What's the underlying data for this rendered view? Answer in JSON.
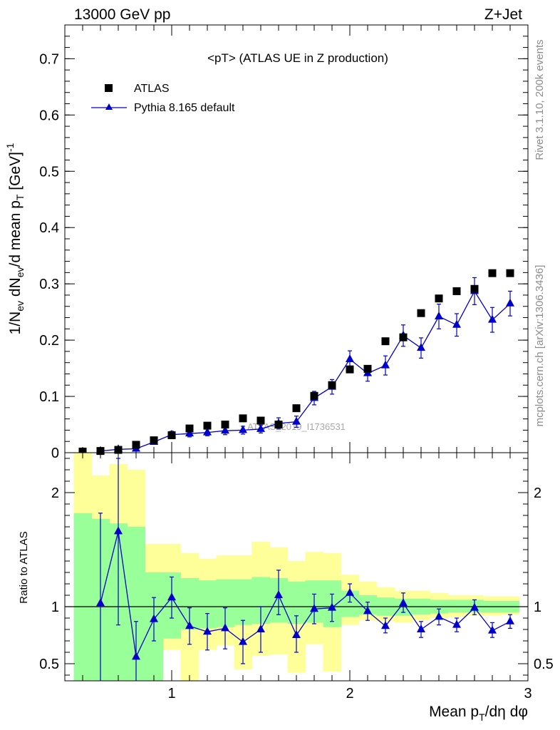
{
  "header": {
    "left": "13000 GeV pp",
    "right": "Z+Jet"
  },
  "side_labels": {
    "rivet": "Rivet 3.1.10,  200k events",
    "mcplots": "mcplots.cern.ch [arXiv:1306.3436]"
  },
  "chart_data": [
    {
      "type": "scatter",
      "title": "<pT> (ATLAS UE in Z production)",
      "watermark": "ATLAS_2019_I1736531",
      "ylabel": "1/N_ev dN_ev/d mean p_T [GeV]^-1",
      "xlim": [
        0.4,
        3.0
      ],
      "ylim": [
        0,
        0.76
      ],
      "yticks": [
        "0",
        "0.1",
        "0.2",
        "0.3",
        "0.4",
        "0.5",
        "0.6",
        "0.7"
      ],
      "legend_position": "top-left",
      "colors": {
        "data": "#000000",
        "mc": "#0000cc"
      },
      "series": [
        {
          "name": "ATLAS",
          "marker": "square",
          "x": [
            0.5,
            0.6,
            0.7,
            0.8,
            0.9,
            1.0,
            1.1,
            1.2,
            1.3,
            1.4,
            1.5,
            1.6,
            1.7,
            1.8,
            1.9,
            2.0,
            2.1,
            2.2,
            2.3,
            2.4,
            2.5,
            2.6,
            2.7,
            2.8,
            2.9
          ],
          "y": [
            0.002,
            0.003,
            0.005,
            0.014,
            0.022,
            0.031,
            0.043,
            0.048,
            0.05,
            0.061,
            0.057,
            0.05,
            0.079,
            0.101,
            0.12,
            0.148,
            0.149,
            0.198,
            0.205,
            0.248,
            0.274,
            0.287,
            0.291,
            0.319,
            0.319
          ]
        },
        {
          "name": "Pythia 8.165 default",
          "marker": "triangle",
          "x": [
            0.6,
            0.7,
            0.8,
            0.9,
            1.0,
            1.1,
            1.2,
            1.3,
            1.4,
            1.5,
            1.6,
            1.7,
            1.8,
            1.9,
            2.0,
            2.1,
            2.2,
            2.3,
            2.4,
            2.5,
            2.6,
            2.7,
            2.8,
            2.9
          ],
          "y": [
            0.003,
            0.006,
            0.007,
            0.019,
            0.032,
            0.034,
            0.036,
            0.039,
            0.04,
            0.042,
            0.052,
            0.055,
            0.097,
            0.117,
            0.166,
            0.141,
            0.155,
            0.208,
            0.186,
            0.242,
            0.227,
            0.287,
            0.236,
            0.265
          ],
          "yerr": [
            0.002,
            0.003,
            0.004,
            0.004,
            0.006,
            0.006,
            0.006,
            0.007,
            0.007,
            0.007,
            0.01,
            0.01,
            0.012,
            0.013,
            0.015,
            0.014,
            0.017,
            0.019,
            0.018,
            0.022,
            0.02,
            0.024,
            0.022,
            0.022
          ]
        }
      ]
    },
    {
      "type": "line",
      "ylabel": "Ratio to ATLAS",
      "xlabel": "Mean p_T/dη dφ",
      "xlim": [
        0.4,
        3.0
      ],
      "ylim": [
        0.35,
        2.35
      ],
      "xticks": [
        "1",
        "2",
        "3"
      ],
      "yticks": [
        "0.5",
        "1",
        "2"
      ],
      "reference": 1,
      "colors": {
        "yellow_band": "#ffff99",
        "green_band": "#99ff99",
        "mc": "#0000cc"
      },
      "bands": {
        "bins": [
          0.45,
          0.55,
          0.65,
          0.75,
          0.85,
          0.95,
          1.05,
          1.15,
          1.25,
          1.35,
          1.45,
          1.55,
          1.65,
          1.75,
          1.85,
          1.95,
          2.05,
          2.15,
          2.25,
          2.35,
          2.45,
          2.55,
          2.65,
          2.75,
          2.85,
          2.95
        ],
        "yellow_lo": [
          0.35,
          0.35,
          0.35,
          0.35,
          0.35,
          0.62,
          0.35,
          0.62,
          0.66,
          0.45,
          0.57,
          0.58,
          0.42,
          0.67,
          0.43,
          0.84,
          0.88,
          0.87,
          0.86,
          0.88,
          0.9,
          0.91,
          0.92,
          0.92,
          0.93
        ],
        "yellow_hi": [
          2.35,
          2.15,
          2.25,
          2.2,
          1.55,
          1.55,
          1.47,
          1.42,
          1.45,
          1.45,
          1.57,
          1.52,
          1.4,
          1.48,
          1.47,
          1.28,
          1.22,
          1.17,
          1.14,
          1.14,
          1.12,
          1.1,
          1.1,
          1.09,
          1.09
        ],
        "green_lo": [
          0.35,
          0.35,
          0.35,
          0.35,
          0.35,
          0.72,
          0.8,
          0.81,
          0.82,
          0.84,
          0.85,
          0.86,
          0.85,
          0.86,
          0.82,
          0.91,
          0.93,
          0.92,
          0.92,
          0.93,
          0.94,
          0.95,
          0.95,
          0.95,
          0.95
        ],
        "green_hi": [
          1.82,
          1.77,
          1.73,
          1.7,
          1.3,
          1.3,
          1.25,
          1.23,
          1.24,
          1.24,
          1.26,
          1.25,
          1.22,
          1.23,
          1.23,
          1.14,
          1.1,
          1.08,
          1.07,
          1.07,
          1.06,
          1.06,
          1.06,
          1.05,
          1.05
        ]
      },
      "series": [
        {
          "marker": "triangle",
          "x": [
            0.6,
            0.7,
            0.8,
            0.9,
            1.0,
            1.1,
            1.2,
            1.3,
            1.4,
            1.5,
            1.6,
            1.7,
            1.8,
            1.9,
            2.0,
            2.1,
            2.2,
            2.3,
            2.4,
            2.5,
            2.6,
            2.7,
            2.8,
            2.9
          ],
          "y": [
            1.03,
            1.66,
            0.56,
            0.89,
            1.08,
            0.83,
            0.78,
            0.81,
            0.69,
            0.8,
            1.1,
            0.75,
            0.98,
            0.99,
            1.12,
            0.96,
            0.83,
            1.03,
            0.8,
            0.91,
            0.84,
            0.99,
            0.79,
            0.87
          ],
          "ylo": [
            0.35,
            0.84,
            0.35,
            0.7,
            0.9,
            0.67,
            0.62,
            0.63,
            0.5,
            0.6,
            0.93,
            0.6,
            0.85,
            0.87,
            1.04,
            0.88,
            0.77,
            0.95,
            0.73,
            0.84,
            0.78,
            0.93,
            0.73,
            0.81
          ],
          "yhi": [
            1.82,
            2.3,
            0.87,
            1.08,
            1.26,
            0.99,
            0.94,
            0.99,
            0.88,
            1.0,
            1.32,
            0.92,
            1.11,
            1.11,
            1.2,
            1.04,
            0.9,
            1.12,
            0.87,
            0.98,
            0.9,
            1.06,
            0.86,
            0.93
          ]
        }
      ]
    }
  ]
}
